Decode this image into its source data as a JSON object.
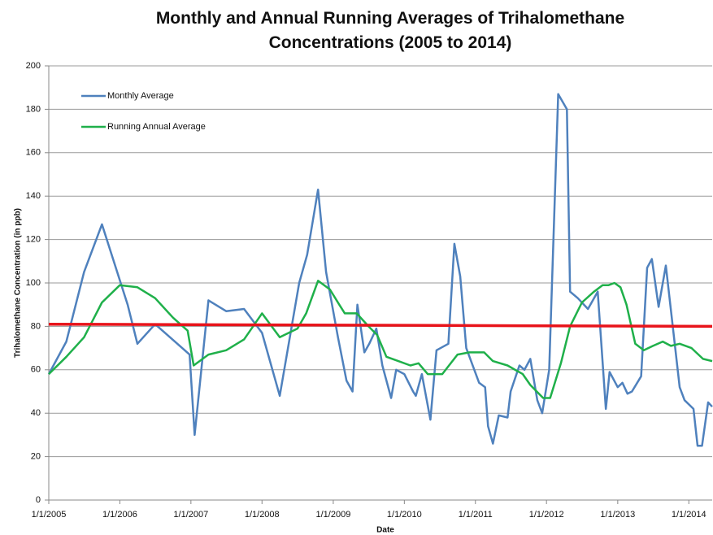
{
  "chart_data": {
    "type": "line",
    "title": "Monthly and Annual Running Averages of Trihalomethane Concentrations (2005 to 2014)",
    "x_label": "Date",
    "y_label": "Trihalomethane Concentration (in ppb)",
    "xlim": [
      "2005-01-01",
      "2014-05-01"
    ],
    "ylim": [
      0,
      200
    ],
    "xticks": [
      {
        "value": "2005-01-01",
        "label": "1/1/2005"
      },
      {
        "value": "2006-01-01",
        "label": "1/1/2006"
      },
      {
        "value": "2007-01-01",
        "label": "1/1/2007"
      },
      {
        "value": "2008-01-01",
        "label": "1/1/2008"
      },
      {
        "value": "2009-01-01",
        "label": "1/1/2009"
      },
      {
        "value": "2010-01-01",
        "label": "1/1/2010"
      },
      {
        "value": "2011-01-01",
        "label": "1/1/2011"
      },
      {
        "value": "2012-01-01",
        "label": "1/1/2012"
      },
      {
        "value": "2013-01-01",
        "label": "1/1/2013"
      },
      {
        "value": "2014-01-01",
        "label": "1/1/2014"
      }
    ],
    "yticks": [
      0,
      20,
      40,
      60,
      80,
      100,
      120,
      140,
      160,
      180,
      200
    ],
    "grid": true,
    "legend": "upper-left",
    "series": [
      {
        "name": "Monthly Average",
        "color": "#4f81bd",
        "x": [
          "2005-01-01",
          "2005-04-01",
          "2005-07-01",
          "2005-10-01",
          "2006-02-10",
          "2006-04-01",
          "2006-07-01",
          "2006-12-25",
          "2007-01-20",
          "2007-04-01",
          "2007-07-01",
          "2007-10-01",
          "2008-01-01",
          "2008-04-01",
          "2008-07-10",
          "2008-08-20",
          "2008-10-15",
          "2008-11-25",
          "2009-01-25",
          "2009-03-10",
          "2009-04-10",
          "2009-05-05",
          "2009-06-10",
          "2009-07-05",
          "2009-08-10",
          "2009-09-10",
          "2009-10-25",
          "2009-11-20",
          "2010-01-01",
          "2010-02-15",
          "2010-03-01",
          "2010-04-01",
          "2010-05-15",
          "2010-06-15",
          "2010-08-15",
          "2010-09-15",
          "2010-10-15",
          "2010-11-15",
          "2011-01-20",
          "2011-02-20",
          "2011-03-07",
          "2011-04-01",
          "2011-05-01",
          "2011-06-15",
          "2011-07-01",
          "2011-08-15",
          "2011-09-10",
          "2011-10-10",
          "2011-11-15",
          "2011-12-10",
          "2012-01-15",
          "2012-03-01",
          "2012-04-15",
          "2012-05-01",
          "2012-06-10",
          "2012-08-01",
          "2012-09-20",
          "2012-11-01",
          "2012-11-20",
          "2013-01-01",
          "2013-01-25",
          "2013-02-20",
          "2013-03-15",
          "2013-05-01",
          "2013-06-01",
          "2013-06-25",
          "2013-07-30",
          "2013-09-05",
          "2013-11-15",
          "2013-12-10",
          "2014-01-25",
          "2014-02-15",
          "2014-03-10",
          "2014-04-10",
          "2014-05-01"
        ],
        "values": [
          58,
          73,
          105,
          127,
          90,
          72,
          81,
          67,
          30,
          92,
          87,
          88,
          77,
          48,
          100,
          113,
          143,
          105,
          75,
          55,
          50,
          90,
          68,
          72,
          79,
          62,
          47,
          60,
          58,
          50,
          48,
          58,
          37,
          69,
          72,
          118,
          103,
          70,
          54,
          52,
          34,
          26,
          39,
          38,
          50,
          62,
          60,
          65,
          46,
          40,
          60,
          187,
          180,
          96,
          93,
          88,
          96,
          42,
          59,
          52,
          54,
          49,
          50,
          57,
          107,
          111,
          89,
          108,
          52,
          46,
          42,
          25,
          25,
          45,
          43
        ]
      },
      {
        "name": "Running Annual Average",
        "color": "#1fb04a",
        "x": [
          "2005-01-01",
          "2005-04-01",
          "2005-07-01",
          "2005-10-01",
          "2006-01-01",
          "2006-04-01",
          "2006-07-01",
          "2006-10-01",
          "2006-12-15",
          "2007-01-15",
          "2007-04-01",
          "2007-07-01",
          "2007-10-01",
          "2008-01-01",
          "2008-04-01",
          "2008-07-01",
          "2008-08-15",
          "2008-10-15",
          "2008-12-15",
          "2009-02-01",
          "2009-03-01",
          "2009-05-01",
          "2009-07-01",
          "2009-08-15",
          "2009-10-01",
          "2009-12-01",
          "2010-02-01",
          "2010-03-15",
          "2010-05-01",
          "2010-07-15",
          "2010-10-01",
          "2010-12-01",
          "2011-02-15",
          "2011-04-01",
          "2011-06-15",
          "2011-09-01",
          "2011-10-10",
          "2011-12-15",
          "2012-01-20",
          "2012-03-15",
          "2012-05-01",
          "2012-07-01",
          "2012-09-01",
          "2012-10-15",
          "2012-11-15",
          "2012-12-15",
          "2013-01-15",
          "2013-02-15",
          "2013-04-01",
          "2013-05-15",
          "2013-07-01",
          "2013-08-20",
          "2013-10-01",
          "2013-11-15",
          "2014-01-15",
          "2014-03-15",
          "2014-05-01"
        ],
        "values": [
          58,
          66,
          75,
          91,
          99,
          98,
          93,
          84,
          78,
          62,
          67,
          69,
          74,
          86,
          75,
          79,
          86,
          101,
          97,
          90,
          86,
          86,
          80,
          76,
          66,
          64,
          62,
          63,
          58,
          58,
          67,
          68,
          68,
          64,
          62,
          58,
          53,
          47,
          47,
          63,
          80,
          91,
          96,
          99,
          99,
          100,
          98,
          90,
          72,
          69,
          71,
          73,
          71,
          72,
          70,
          65,
          64
        ]
      }
    ],
    "reference_line": {
      "color": "#e8141b",
      "x": [
        "2005-01-01",
        "2014-05-01"
      ],
      "values": [
        81,
        80
      ]
    }
  }
}
